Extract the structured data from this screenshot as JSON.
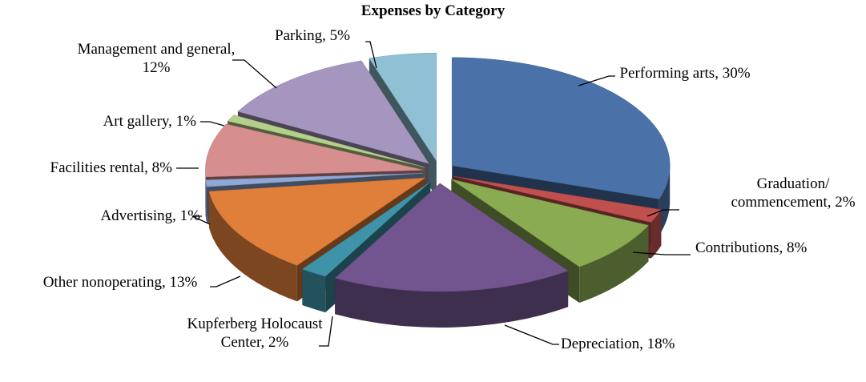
{
  "chart_data": {
    "type": "pie3d",
    "title": "Expenses by Category",
    "categories": [
      "Performing arts,",
      "Graduation/ commencement,",
      "Contributions,",
      "Depreciation,",
      "Kupferberg Holocaust Center,",
      "Other nonoperating,",
      "Advertising,",
      "Facilities rental,",
      "Art gallery,",
      "Management and general,",
      "Parking,"
    ],
    "values": [
      30,
      2,
      8,
      18,
      2,
      13,
      1,
      8,
      1,
      12,
      5
    ],
    "value_labels": [
      "30%",
      "2%",
      "8%",
      "18%",
      "2%",
      "13%",
      "1%",
      "8%",
      "1%",
      "12%",
      "5%"
    ],
    "colors": [
      "#4a72a8",
      "#c0504d",
      "#8aab52",
      "#72558f",
      "#3f93a8",
      "#e07f3a",
      "#8fa8d6",
      "#d68f8e",
      "#b4cf8a",
      "#a596bf",
      "#8fc0d4"
    ]
  }
}
